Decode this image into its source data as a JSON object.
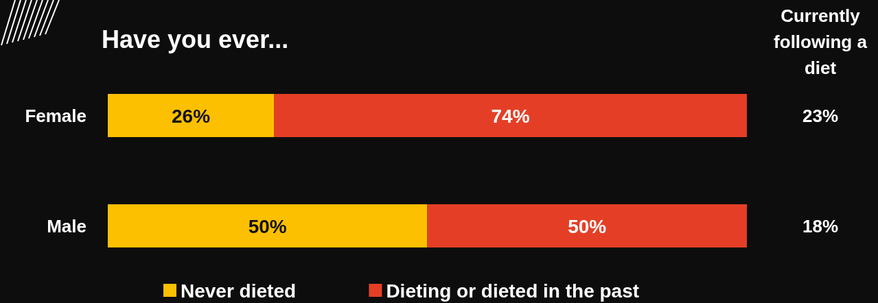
{
  "chart_data": {
    "type": "bar",
    "orientation": "horizontal",
    "stacked": true,
    "title": "Have you ever...",
    "categories": [
      "Female",
      "Male"
    ],
    "series": [
      {
        "name": "Never dieted",
        "color": "#fdc000",
        "values": [
          26,
          50
        ],
        "value_labels": [
          "26%",
          "50%"
        ]
      },
      {
        "name": "Dieting or dieted in the past",
        "color": "#e43f26",
        "values": [
          74,
          50
        ],
        "value_labels": [
          "74%",
          "50%"
        ]
      }
    ],
    "xlim": [
      0,
      100
    ],
    "tick_labels": "y",
    "legend": "bottom",
    "annotations": [
      "Currently following a diet",
      "23%",
      "18%"
    ]
  }
}
